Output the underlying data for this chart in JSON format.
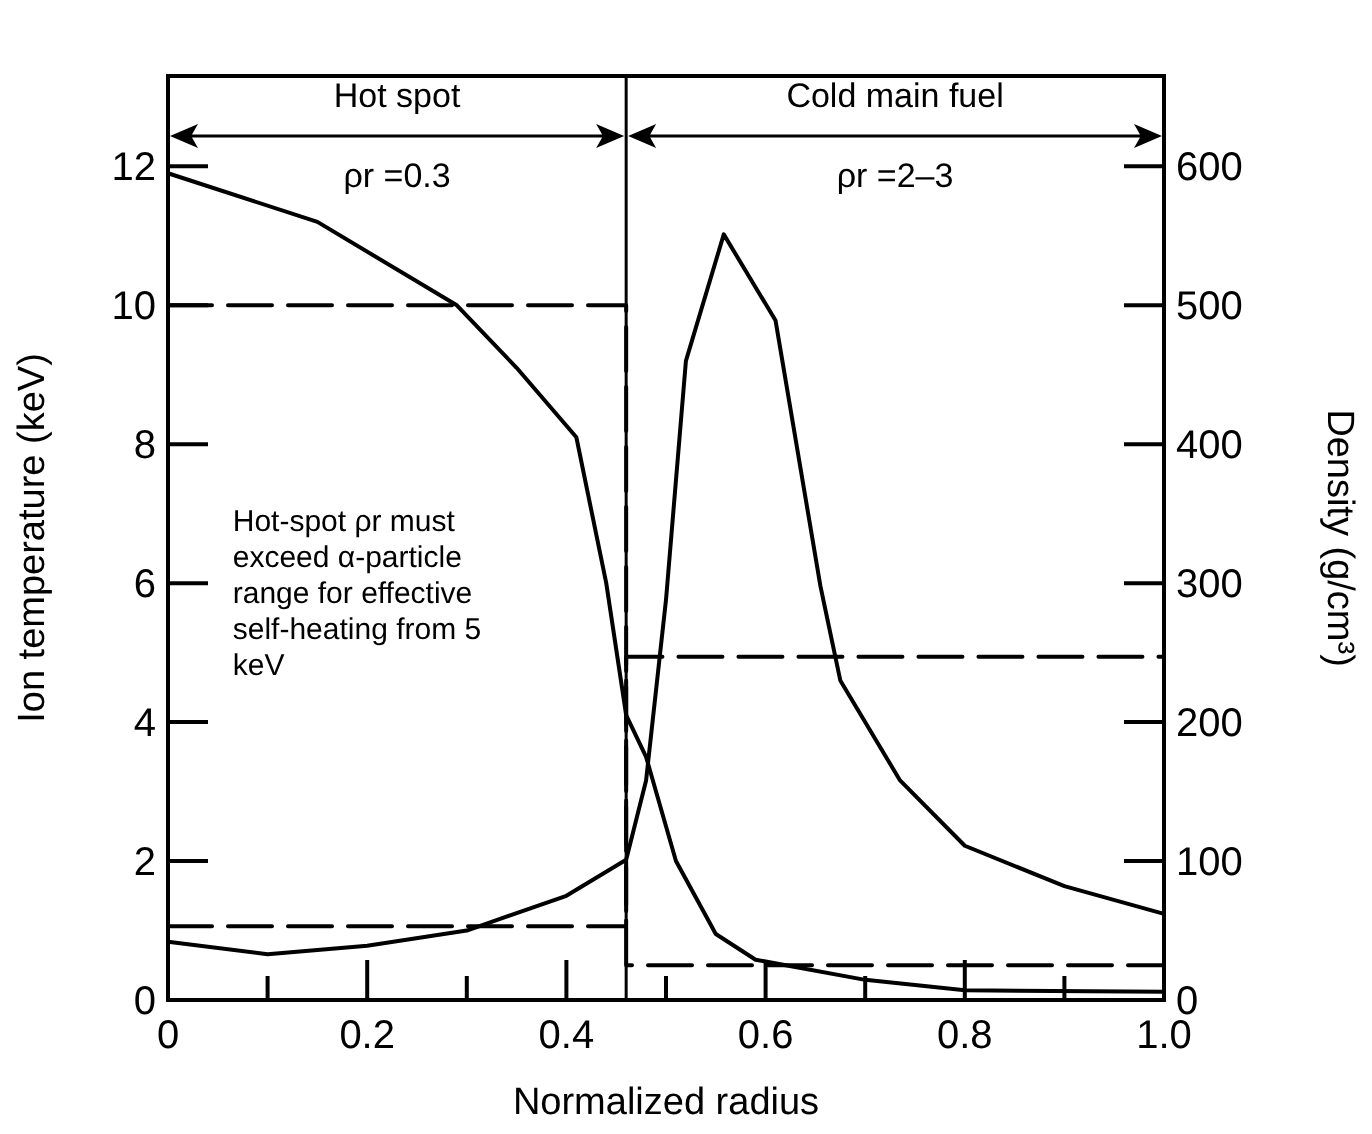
{
  "chart_data": {
    "type": "line",
    "xlabel": "Normalized radius",
    "ylabel": "Ion temperature (keV)",
    "y2label": "Density (g/cm³)",
    "xlim": [
      0,
      1
    ],
    "xticks": [
      0,
      {
        "value": 0.1,
        "label": null
      },
      0.2,
      {
        "value": 0.3,
        "label": null
      },
      0.4,
      {
        "value": 0.5,
        "label": null
      },
      0.6,
      {
        "value": 0.7,
        "label": null
      },
      0.8,
      {
        "value": 0.9,
        "label": null
      },
      {
        "value": 1,
        "label": "1.0"
      }
    ],
    "ylim": [
      0,
      13.3
    ],
    "yticks": [
      0,
      2,
      4,
      6,
      8,
      10,
      12
    ],
    "y2lim": [
      0,
      665
    ],
    "y2ticks": [
      0,
      100,
      200,
      300,
      400,
      500,
      600
    ],
    "grid": false,
    "marker": "none",
    "series": [
      {
        "color": "#000000",
        "line_style": "solid",
        "x": [
          0,
          0.15,
          0.29,
          0.35,
          0.41,
          0.44,
          0.46,
          0.48,
          0.51,
          0.55,
          0.59,
          0.7,
          0.8,
          1.0
        ],
        "values": [
          11.9,
          11.2,
          10,
          9.1,
          8.1,
          6,
          4.1,
          3.5,
          2,
          0.95,
          0.58,
          0.29,
          0.14,
          0.12
        ]
      },
      {
        "color": "#000000",
        "line_style": "solid",
        "axis": "y2",
        "x": [
          0,
          0.1,
          0.2,
          0.3,
          0.4,
          0.46,
          0.48,
          0.5,
          0.52,
          0.558,
          0.61,
          0.655,
          0.675,
          0.735,
          0.8,
          0.9,
          1.0
        ],
        "values": [
          42,
          33,
          39,
          50,
          75,
          101,
          158,
          288,
          460,
          551,
          489,
          298,
          230,
          158,
          111,
          82,
          62
        ]
      },
      {
        "color": "#000000",
        "line_style": "dashed",
        "x": [
          0,
          0.46,
          0.46,
          1
        ],
        "values": [
          10,
          10,
          0.5,
          0.5
        ]
      },
      {
        "color": "#000000",
        "line_style": "dashed",
        "axis": "y2",
        "x": [
          0,
          0.46,
          0.46,
          1
        ],
        "values": [
          53,
          53,
          247,
          247
        ]
      }
    ],
    "ref_lines": [
      {
        "axis": "x",
        "value": 0.46,
        "color": "#000000"
      }
    ],
    "annotations": [
      "ρr =0.3",
      "ρr =2–3",
      "Hot-spot ρr must exceed α-particle range for effective self-heating from 5 keV",
      "Hot spot",
      "Cold main fuel"
    ]
  }
}
